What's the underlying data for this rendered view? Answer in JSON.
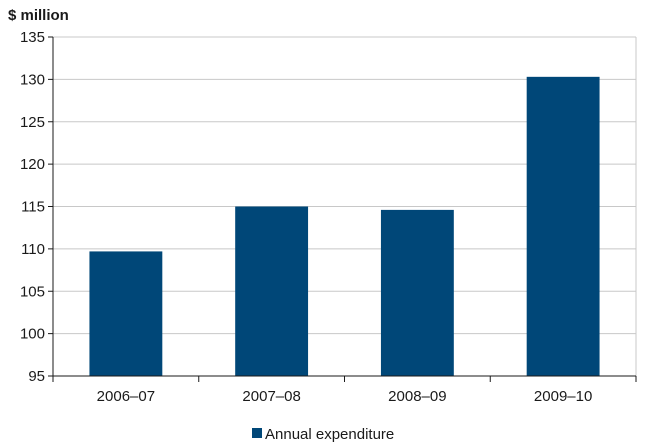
{
  "chart_data": {
    "type": "bar",
    "ylabel": "$ million",
    "xlabel": "",
    "categories": [
      "2006–07",
      "2007–08",
      "2008–09",
      "2009–10"
    ],
    "series": [
      {
        "name": "Annual expenditure",
        "values": [
          109.7,
          115.0,
          114.6,
          130.3
        ],
        "color": "#004778"
      }
    ],
    "ylim": [
      95,
      135
    ],
    "yticks": [
      95,
      100,
      105,
      110,
      115,
      120,
      125,
      130,
      135
    ],
    "grid": true,
    "legend_position": "bottom-center"
  }
}
